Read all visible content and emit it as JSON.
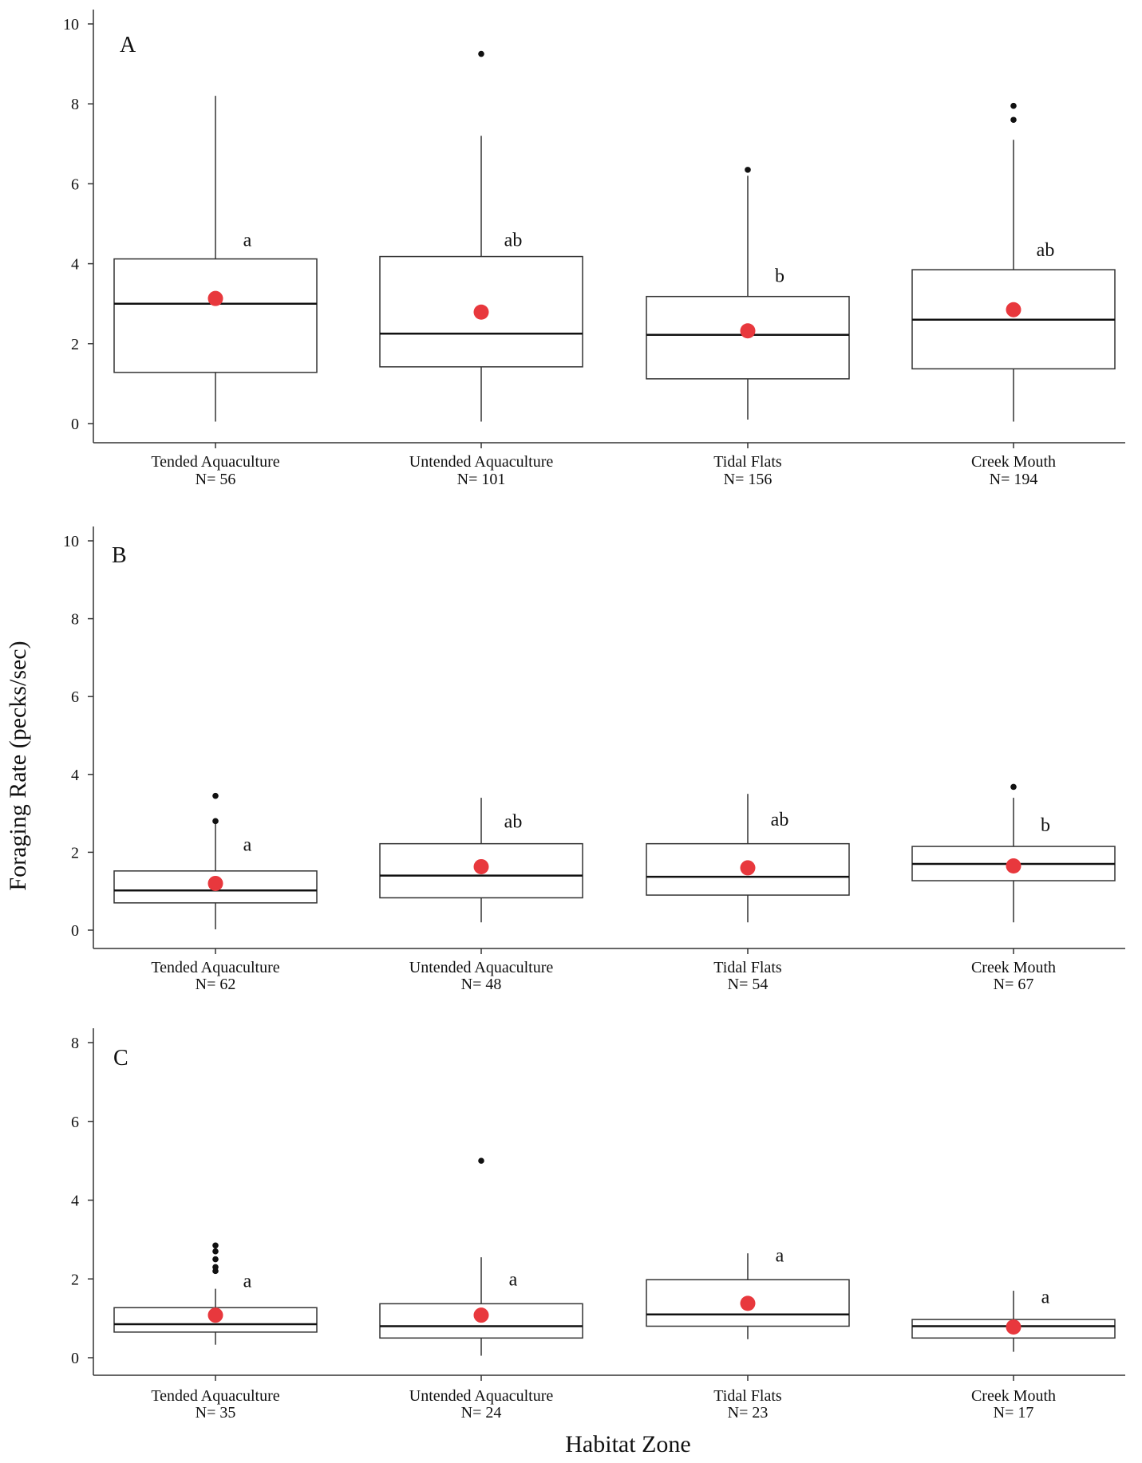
{
  "ylabel": "Foraging Rate (pecks/sec)",
  "xlabel": "Habitat Zone",
  "colors": {
    "mean": "#e8383d",
    "box": "#333333",
    "outlier": "#111111"
  },
  "chart_data": [
    {
      "type": "box",
      "panel": "A",
      "ylim": [
        0,
        10
      ],
      "yticks": [
        "0",
        "2",
        "4",
        "6",
        "8",
        "10"
      ],
      "categories": [
        "Tended Aquaculture",
        "Untended Aquaculture",
        "Tidal Flats",
        "Creek Mouth"
      ],
      "n_labels": [
        "N= 56",
        "N= 101",
        "N= 156",
        "N= 194"
      ],
      "letters": [
        "a",
        "ab",
        "b",
        "ab"
      ],
      "letter_y": [
        4.6,
        4.6,
        3.7,
        4.35
      ],
      "boxes": [
        {
          "min": 0.05,
          "q1": 1.28,
          "median": 3.0,
          "q3": 4.12,
          "max": 8.2,
          "mean": 3.13,
          "outliers": []
        },
        {
          "min": 0.05,
          "q1": 1.42,
          "median": 2.25,
          "q3": 4.18,
          "max": 7.2,
          "mean": 2.79,
          "outliers": [
            9.25
          ]
        },
        {
          "min": 0.1,
          "q1": 1.12,
          "median": 2.22,
          "q3": 3.18,
          "max": 6.2,
          "mean": 2.32,
          "outliers": [
            6.35
          ]
        },
        {
          "min": 0.05,
          "q1": 1.37,
          "median": 2.6,
          "q3": 3.85,
          "max": 7.1,
          "mean": 2.85,
          "outliers": [
            7.6,
            7.95
          ]
        }
      ]
    },
    {
      "type": "box",
      "panel": "B",
      "ylim": [
        0,
        10
      ],
      "yticks": [
        "0",
        "2",
        "4",
        "6",
        "8",
        "10"
      ],
      "categories": [
        "Tended Aquaculture",
        "Untended Aquaculture",
        "Tidal Flats",
        "Creek Mouth"
      ],
      "n_labels": [
        "N= 62",
        "N= 48",
        "N= 54",
        "N= 67"
      ],
      "letters": [
        "a",
        "ab",
        "ab",
        "b"
      ],
      "letter_y": [
        2.2,
        2.8,
        2.85,
        2.7
      ],
      "boxes": [
        {
          "min": 0.02,
          "q1": 0.7,
          "median": 1.02,
          "q3": 1.52,
          "max": 2.75,
          "mean": 1.2,
          "outliers": [
            2.8,
            3.45
          ]
        },
        {
          "min": 0.2,
          "q1": 0.83,
          "median": 1.4,
          "q3": 2.22,
          "max": 3.4,
          "mean": 1.63,
          "outliers": []
        },
        {
          "min": 0.2,
          "q1": 0.9,
          "median": 1.37,
          "q3": 2.22,
          "max": 3.5,
          "mean": 1.6,
          "outliers": []
        },
        {
          "min": 0.2,
          "q1": 1.27,
          "median": 1.7,
          "q3": 2.15,
          "max": 3.4,
          "mean": 1.65,
          "outliers": [
            3.68
          ]
        }
      ]
    },
    {
      "type": "box",
      "panel": "C",
      "ylim": [
        0,
        8
      ],
      "yticks": [
        "0",
        "2",
        "4",
        "6",
        "8"
      ],
      "categories": [
        "Tended Aquaculture",
        "Untended Aquaculture",
        "Tidal Flats",
        "Creek Mouth"
      ],
      "n_labels": [
        "N= 35",
        "N= 24",
        "N= 23",
        "N= 17"
      ],
      "letters": [
        "a",
        "a",
        "a",
        "a"
      ],
      "letter_y": [
        1.95,
        2.0,
        2.6,
        1.55
      ],
      "boxes": [
        {
          "min": 0.33,
          "q1": 0.65,
          "median": 0.85,
          "q3": 1.27,
          "max": 1.75,
          "mean": 1.08,
          "outliers": [
            2.2,
            2.3,
            2.5,
            2.7,
            2.85
          ]
        },
        {
          "min": 0.05,
          "q1": 0.5,
          "median": 0.8,
          "q3": 1.37,
          "max": 2.55,
          "mean": 1.08,
          "outliers": [
            5.0
          ]
        },
        {
          "min": 0.47,
          "q1": 0.8,
          "median": 1.1,
          "q3": 1.98,
          "max": 2.65,
          "mean": 1.38,
          "outliers": []
        },
        {
          "min": 0.15,
          "q1": 0.5,
          "median": 0.8,
          "q3": 0.97,
          "max": 1.7,
          "mean": 0.78,
          "outliers": []
        }
      ]
    }
  ]
}
